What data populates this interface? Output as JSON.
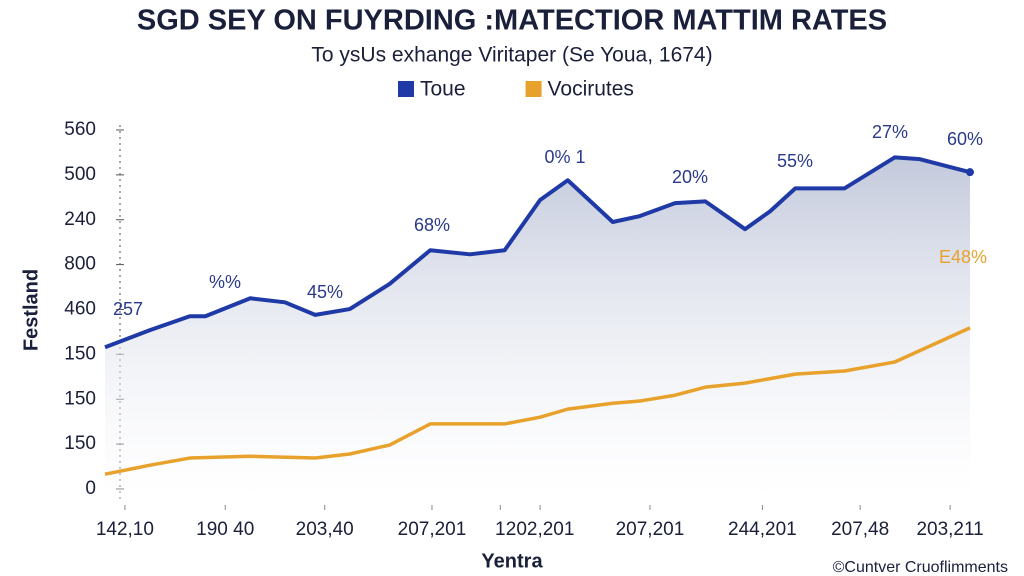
{
  "chart_data": {
    "type": "line",
    "title": "SGD SEY ON FUYRDING :MATECTIOR MATTIM RATES",
    "subtitle": "To ysUs exhange Viritaper (Se Youa, 1674)",
    "y_label": "Festland",
    "x_label": "Yentra",
    "credit": "©Cuntver Cruoflimments",
    "xlim": [
      0,
      100
    ],
    "xticks": [
      {
        "value": 2.3,
        "label": "142,10"
      },
      {
        "value": 13.9,
        "label": "190 40"
      },
      {
        "value": 25.4,
        "label": "203,40"
      },
      {
        "value": 37.8,
        "label": "207,201"
      },
      {
        "value": 45.7,
        "label": "1"
      },
      {
        "value": 50.3,
        "label": "202,201"
      },
      {
        "value": 63.0,
        "label": "207,201"
      },
      {
        "value": 76.0,
        "label": "244,201"
      },
      {
        "value": 87.3,
        "label": "207,48"
      },
      {
        "value": 97.7,
        "label": "203,211"
      }
    ],
    "ylim": [
      0,
      8
    ],
    "yticks": [
      {
        "value": 0,
        "label": "0"
      },
      {
        "value": 1,
        "label": "150"
      },
      {
        "value": 2,
        "label": "150"
      },
      {
        "value": 3,
        "label": "150"
      },
      {
        "value": 4,
        "label": "460"
      },
      {
        "value": 5,
        "label": "800"
      },
      {
        "value": 6,
        "label": "240"
      },
      {
        "value": 7,
        "label": "500"
      },
      {
        "value": 8,
        "label": "560"
      }
    ],
    "series": [
      {
        "name": "Toue",
        "color": "#1f3aa6",
        "area": true,
        "x": [
          0,
          5.2,
          9.8,
          11.6,
          16.8,
          20.8,
          24.3,
          28.3,
          32.9,
          37.6,
          42.2,
          46.2,
          50.3,
          53.5,
          58.7,
          61.8,
          65.9,
          69.4,
          74,
          76.9,
          79.8,
          85.5,
          91.3,
          94.2,
          100
        ],
        "values": [
          3.16,
          3.54,
          3.85,
          3.85,
          4.25,
          4.16,
          3.88,
          4.01,
          4.57,
          5.32,
          5.23,
          5.32,
          6.44,
          6.88,
          5.95,
          6.08,
          6.37,
          6.41,
          5.79,
          6.19,
          6.7,
          6.7,
          7.39,
          7.35,
          7.06
        ]
      },
      {
        "name": "Vocirutes",
        "color": "#e8a22c",
        "area": false,
        "x": [
          0,
          5.2,
          9.8,
          16.8,
          24.3,
          28.3,
          32.9,
          37.6,
          46.2,
          50.3,
          53.5,
          58.7,
          61.8,
          65.9,
          69.4,
          74,
          79.8,
          85.5,
          91.3,
          100
        ],
        "values": [
          0.33,
          0.53,
          0.69,
          0.73,
          0.69,
          0.78,
          0.98,
          1.45,
          1.45,
          1.6,
          1.78,
          1.91,
          1.96,
          2.09,
          2.27,
          2.36,
          2.56,
          2.63,
          2.83,
          3.59
        ]
      }
    ],
    "annotations": [
      "257",
      "%%",
      "45%",
      "68%",
      "0% 1",
      "20%",
      "55%",
      "27%",
      "60%",
      "E48%"
    ]
  }
}
